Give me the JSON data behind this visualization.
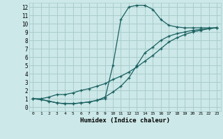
{
  "xlabel": "Humidex (Indice chaleur)",
  "bg_color": "#cce8e8",
  "grid_color": "#aacccc",
  "line_color": "#1a6060",
  "xlim": [
    -0.5,
    23.5
  ],
  "ylim": [
    -0.5,
    12.5
  ],
  "xticks": [
    0,
    1,
    2,
    3,
    4,
    5,
    6,
    7,
    8,
    9,
    10,
    11,
    12,
    13,
    14,
    15,
    16,
    17,
    18,
    19,
    20,
    21,
    22,
    23
  ],
  "yticks": [
    0,
    1,
    2,
    3,
    4,
    5,
    6,
    7,
    8,
    9,
    10,
    11,
    12
  ],
  "line1_x": [
    0,
    1,
    2,
    3,
    4,
    5,
    6,
    7,
    8,
    9,
    10,
    11,
    12,
    13,
    14,
    15,
    16,
    17,
    18,
    19,
    20,
    21,
    22,
    23
  ],
  "line1_y": [
    1.0,
    0.9,
    0.7,
    0.5,
    0.4,
    0.4,
    0.5,
    0.6,
    0.8,
    1.0,
    5.0,
    10.5,
    12.0,
    12.2,
    12.2,
    11.7,
    10.5,
    9.8,
    9.6,
    9.5,
    9.5,
    9.5,
    9.5,
    9.5
  ],
  "line2_x": [
    0,
    1,
    2,
    3,
    4,
    5,
    6,
    7,
    8,
    9,
    10,
    11,
    12,
    13,
    14,
    15,
    16,
    17,
    18,
    19,
    20,
    21,
    22,
    23
  ],
  "line2_y": [
    1.0,
    1.0,
    1.2,
    1.5,
    1.5,
    1.7,
    2.0,
    2.2,
    2.5,
    2.8,
    3.3,
    3.7,
    4.2,
    4.8,
    5.5,
    6.2,
    7.0,
    7.8,
    8.3,
    8.7,
    9.0,
    9.2,
    9.4,
    9.5
  ],
  "line3_x": [
    0,
    1,
    2,
    3,
    4,
    5,
    6,
    7,
    8,
    9,
    10,
    11,
    12,
    13,
    14,
    15,
    16,
    17,
    18,
    19,
    20,
    21,
    22,
    23
  ],
  "line3_y": [
    1.0,
    0.9,
    0.7,
    0.5,
    0.4,
    0.4,
    0.5,
    0.6,
    0.8,
    1.2,
    1.8,
    2.5,
    3.5,
    5.0,
    6.5,
    7.2,
    8.0,
    8.5,
    8.8,
    9.0,
    9.2,
    9.3,
    9.4,
    9.5
  ]
}
